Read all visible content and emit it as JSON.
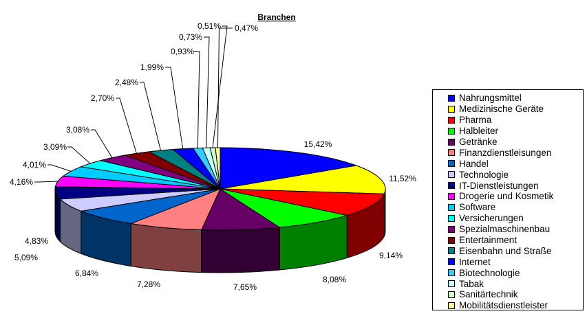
{
  "chart_data": {
    "type": "pie",
    "title": "Branchen",
    "categories": [
      "Nahrungsmittel",
      "Medizinische Geräte",
      "Pharma",
      "Halbleiter",
      "Getränke",
      "Finanzdienstleisungen",
      "Handel",
      "Technologie",
      "IT-Dienstleistungen",
      "Drogerie und Kosmetik",
      "Software",
      "Versicherungen",
      "Spezialmaschinenbau",
      "Entertainment",
      "Eisenbahn und Straße",
      "Internet",
      "Biotechnologie",
      "Tabak",
      "Sanitärtechnik",
      "Mobilitätsdienstleister"
    ],
    "values": [
      15.42,
      11.52,
      9.14,
      8.08,
      7.65,
      7.28,
      6.84,
      5.09,
      4.83,
      4.16,
      4.01,
      3.09,
      3.08,
      2.7,
      2.48,
      1.99,
      0.93,
      0.73,
      0.51,
      0.47
    ],
    "labels": [
      "15,42%",
      "11,52%",
      "9,14%",
      "8,08%",
      "7,65%",
      "7,28%",
      "6,84%",
      "5,09%",
      "4,83%",
      "4,16%",
      "4,01%",
      "3,09%",
      "3,08%",
      "2,70%",
      "2,48%",
      "1,99%",
      "0,93%",
      "0,73%",
      "0,51%",
      "0,47%"
    ],
    "colors": [
      "#0000FF",
      "#FFFF00",
      "#FF0000",
      "#00FF00",
      "#660066",
      "#FF8080",
      "#0066CC",
      "#CCCCFF",
      "#000080",
      "#FF00FF",
      "#00CCFF",
      "#00FFFF",
      "#800080",
      "#800000",
      "#008080",
      "#0000FF",
      "#33CCFF",
      "#CCFFFF",
      "#CCFFCC",
      "#FFFF99"
    ],
    "legend_position": "right"
  }
}
